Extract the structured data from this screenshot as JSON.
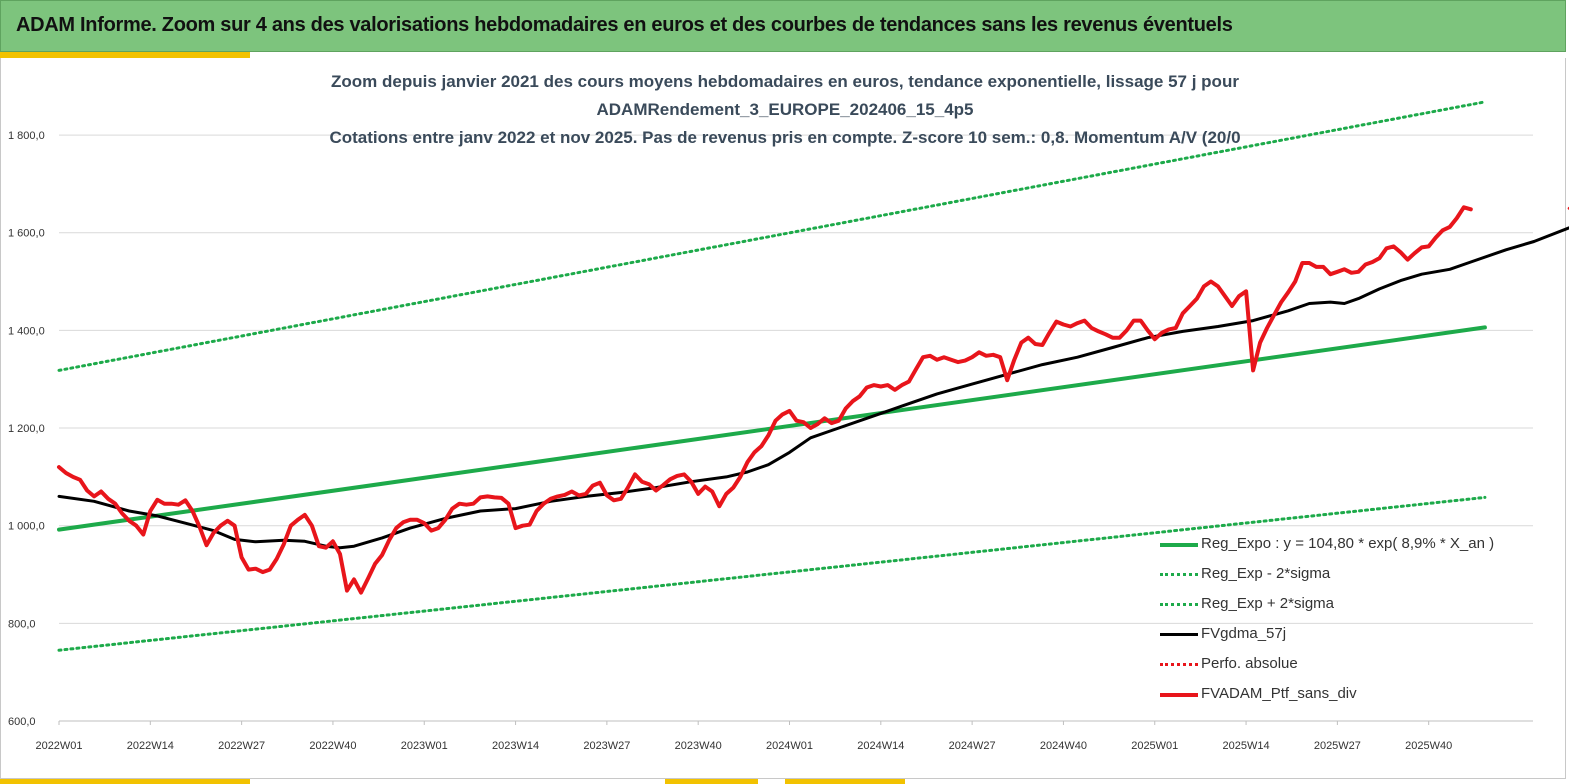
{
  "header": {
    "title": "ADAM Informe. Zoom sur 4 ans des valorisations hebdomadaires en euros et des courbes de tendances sans les revenus éventuels"
  },
  "colors": {
    "header_bg": "#7dc47d",
    "accent": "#f2c200",
    "trend_green": "#1daa4a",
    "black": "#000000",
    "red": "#e8151b"
  },
  "chart_data": {
    "type": "line",
    "title_lines": [
      "Zoom depuis janvier 2021 des cours moyens hebdomadaires  en euros, tendance exponentielle, lissage 57 j pour",
      "ADAMRendement_3_EUROPE_202406_15_4p5",
      "Cotations  entre janv 2022 et nov 2025. Pas de revenus pris en compte. Z-score 10 sem.: 0,8. Momentum A/V (20/0"
    ],
    "x_ticks": [
      "2022W01",
      "2022W14",
      "2022W27",
      "2022W40",
      "2023W01",
      "2023W14",
      "2023W27",
      "2023W40",
      "2024W01",
      "2024W14",
      "2024W27",
      "2024W40",
      "2025W01",
      "2025W14",
      "2025W27",
      "2025W40"
    ],
    "y_ticks": [
      "600,0",
      "800,0",
      "1 000,0",
      "1 200,0",
      "1 400,0",
      "1 600,0",
      "1 800,0"
    ],
    "ylim": [
      600,
      1880
    ],
    "x_range_weeks": [
      0,
      203
    ],
    "grid": "horizontal",
    "legend_position": "bottom-right",
    "series": [
      {
        "name": "Reg_Expo : y = 104,80 * exp( 8,9% *  X_an )",
        "style": "solid-thick",
        "color": "#1daa4a",
        "points": [
          [
            0,
            992
          ],
          [
            203,
            1406
          ]
        ]
      },
      {
        "name": "Reg_Exp - 2*sigma",
        "style": "dotted",
        "color": "#1daa4a",
        "points": [
          [
            0,
            745
          ],
          [
            203,
            1058
          ]
        ]
      },
      {
        "name": "Reg_Exp + 2*sigma",
        "style": "dotted",
        "color": "#1daa4a",
        "points": [
          [
            0,
            1318
          ],
          [
            203,
            1868
          ]
        ]
      },
      {
        "name": "FVgdma_57j",
        "style": "solid",
        "color": "#000000",
        "points": [
          [
            0,
            1060
          ],
          [
            5,
            1050
          ],
          [
            10,
            1030
          ],
          [
            14,
            1020
          ],
          [
            18,
            1005
          ],
          [
            22,
            990
          ],
          [
            25,
            972
          ],
          [
            28,
            967
          ],
          [
            32,
            970
          ],
          [
            35,
            968
          ],
          [
            38,
            958
          ],
          [
            40,
            955
          ],
          [
            42,
            958
          ],
          [
            46,
            975
          ],
          [
            50,
            995
          ],
          [
            55,
            1015
          ],
          [
            60,
            1030
          ],
          [
            65,
            1035
          ],
          [
            70,
            1050
          ],
          [
            75,
            1060
          ],
          [
            80,
            1068
          ],
          [
            85,
            1078
          ],
          [
            90,
            1090
          ],
          [
            95,
            1100
          ],
          [
            98,
            1110
          ],
          [
            101,
            1125
          ],
          [
            104,
            1150
          ],
          [
            107,
            1180
          ],
          [
            110,
            1195
          ],
          [
            115,
            1220
          ],
          [
            120,
            1245
          ],
          [
            125,
            1270
          ],
          [
            130,
            1290
          ],
          [
            135,
            1310
          ],
          [
            140,
            1330
          ],
          [
            145,
            1345
          ],
          [
            150,
            1365
          ],
          [
            155,
            1385
          ],
          [
            160,
            1398
          ],
          [
            165,
            1408
          ],
          [
            170,
            1420
          ],
          [
            175,
            1440
          ],
          [
            178,
            1455
          ],
          [
            181,
            1458
          ],
          [
            183,
            1455
          ],
          [
            185,
            1465
          ],
          [
            188,
            1485
          ],
          [
            191,
            1502
          ],
          [
            194,
            1515
          ],
          [
            198,
            1525
          ],
          [
            201,
            1540
          ],
          [
            206,
            1565
          ],
          [
            210,
            1582
          ],
          [
            215,
            1610
          ],
          [
            218,
            1620
          ],
          [
            220,
            1625
          ]
        ]
      },
      {
        "name": "Perfo. absolue",
        "style": "dotted",
        "color": "#e8151b",
        "points": [
          [
            215,
            1650
          ],
          [
            216,
            1640
          ],
          [
            217,
            1655
          ],
          [
            218,
            1635
          ],
          [
            219,
            1642
          ],
          [
            220,
            1638
          ]
        ]
      },
      {
        "name": "FVADAM_Ptf_sans_div",
        "style": "solid-thick",
        "color": "#e8151b",
        "points": [
          [
            0,
            1120
          ],
          [
            1,
            1108
          ],
          [
            2,
            1100
          ],
          [
            3,
            1094
          ],
          [
            4,
            1072
          ],
          [
            5,
            1060
          ],
          [
            6,
            1070
          ],
          [
            7,
            1055
          ],
          [
            8,
            1045
          ],
          [
            9,
            1025
          ],
          [
            10,
            1010
          ],
          [
            11,
            1000
          ],
          [
            12,
            982
          ],
          [
            13,
            1030
          ],
          [
            14,
            1053
          ],
          [
            15,
            1045
          ],
          [
            16,
            1045
          ],
          [
            17,
            1043
          ],
          [
            18,
            1052
          ],
          [
            19,
            1030
          ],
          [
            20,
            998
          ],
          [
            21,
            960
          ],
          [
            22,
            985
          ],
          [
            23,
            1000
          ],
          [
            24,
            1010
          ],
          [
            25,
            1000
          ],
          [
            26,
            935
          ],
          [
            27,
            910
          ],
          [
            28,
            912
          ],
          [
            29,
            905
          ],
          [
            30,
            910
          ],
          [
            31,
            932
          ],
          [
            32,
            962
          ],
          [
            33,
            1000
          ],
          [
            34,
            1012
          ],
          [
            35,
            1022
          ],
          [
            36,
            1000
          ],
          [
            37,
            958
          ],
          [
            38,
            955
          ],
          [
            39,
            968
          ],
          [
            40,
            942
          ],
          [
            41,
            867
          ],
          [
            42,
            890
          ],
          [
            43,
            863
          ],
          [
            44,
            892
          ],
          [
            45,
            922
          ],
          [
            46,
            940
          ],
          [
            47,
            970
          ],
          [
            48,
            995
          ],
          [
            49,
            1007
          ],
          [
            50,
            1012
          ],
          [
            51,
            1012
          ],
          [
            52,
            1005
          ],
          [
            53,
            990
          ],
          [
            54,
            995
          ],
          [
            55,
            1012
          ],
          [
            56,
            1035
          ],
          [
            57,
            1045
          ],
          [
            58,
            1043
          ],
          [
            59,
            1045
          ],
          [
            60,
            1058
          ],
          [
            61,
            1060
          ],
          [
            62,
            1058
          ],
          [
            63,
            1057
          ],
          [
            64,
            1045
          ],
          [
            65,
            995
          ],
          [
            66,
            1000
          ],
          [
            67,
            1002
          ],
          [
            68,
            1030
          ],
          [
            69,
            1045
          ],
          [
            70,
            1055
          ],
          [
            71,
            1060
          ],
          [
            72,
            1063
          ],
          [
            73,
            1070
          ],
          [
            74,
            1062
          ],
          [
            75,
            1065
          ],
          [
            76,
            1082
          ],
          [
            77,
            1088
          ],
          [
            78,
            1062
          ],
          [
            79,
            1052
          ],
          [
            80,
            1055
          ],
          [
            81,
            1078
          ],
          [
            82,
            1105
          ],
          [
            83,
            1090
          ],
          [
            84,
            1085
          ],
          [
            85,
            1072
          ],
          [
            86,
            1083
          ],
          [
            87,
            1095
          ],
          [
            88,
            1102
          ],
          [
            89,
            1105
          ],
          [
            90,
            1090
          ],
          [
            91,
            1065
          ],
          [
            92,
            1080
          ],
          [
            93,
            1070
          ],
          [
            94,
            1040
          ],
          [
            95,
            1065
          ],
          [
            96,
            1078
          ],
          [
            97,
            1100
          ],
          [
            98,
            1130
          ],
          [
            99,
            1150
          ],
          [
            100,
            1163
          ],
          [
            101,
            1185
          ],
          [
            102,
            1215
          ],
          [
            103,
            1228
          ],
          [
            104,
            1235
          ],
          [
            105,
            1215
          ],
          [
            106,
            1212
          ],
          [
            107,
            1200
          ],
          [
            108,
            1208
          ],
          [
            109,
            1220
          ],
          [
            110,
            1210
          ],
          [
            111,
            1215
          ],
          [
            112,
            1240
          ],
          [
            113,
            1255
          ],
          [
            114,
            1265
          ],
          [
            115,
            1283
          ],
          [
            116,
            1288
          ],
          [
            117,
            1285
          ],
          [
            118,
            1288
          ],
          [
            119,
            1278
          ],
          [
            120,
            1288
          ],
          [
            121,
            1295
          ],
          [
            122,
            1320
          ],
          [
            123,
            1345
          ],
          [
            124,
            1348
          ],
          [
            125,
            1340
          ],
          [
            126,
            1345
          ],
          [
            127,
            1340
          ],
          [
            128,
            1335
          ],
          [
            129,
            1338
          ],
          [
            130,
            1345
          ],
          [
            131,
            1355
          ],
          [
            132,
            1348
          ],
          [
            133,
            1350
          ],
          [
            134,
            1345
          ],
          [
            135,
            1298
          ],
          [
            136,
            1340
          ],
          [
            137,
            1375
          ],
          [
            138,
            1385
          ],
          [
            139,
            1372
          ],
          [
            140,
            1370
          ],
          [
            141,
            1395
          ],
          [
            142,
            1418
          ],
          [
            143,
            1412
          ],
          [
            144,
            1408
          ],
          [
            145,
            1415
          ],
          [
            146,
            1420
          ],
          [
            147,
            1405
          ],
          [
            148,
            1398
          ],
          [
            149,
            1392
          ],
          [
            150,
            1385
          ],
          [
            151,
            1385
          ],
          [
            152,
            1400
          ],
          [
            153,
            1420
          ],
          [
            154,
            1420
          ],
          [
            155,
            1400
          ],
          [
            156,
            1382
          ],
          [
            157,
            1395
          ],
          [
            158,
            1402
          ],
          [
            159,
            1405
          ],
          [
            160,
            1435
          ],
          [
            161,
            1450
          ],
          [
            162,
            1465
          ],
          [
            163,
            1490
          ],
          [
            164,
            1500
          ],
          [
            165,
            1490
          ],
          [
            166,
            1470
          ],
          [
            167,
            1450
          ],
          [
            168,
            1470
          ],
          [
            169,
            1480
          ],
          [
            170,
            1318
          ],
          [
            171,
            1375
          ],
          [
            172,
            1405
          ],
          [
            173,
            1432
          ],
          [
            174,
            1458
          ],
          [
            175,
            1478
          ],
          [
            176,
            1500
          ],
          [
            177,
            1538
          ],
          [
            178,
            1538
          ],
          [
            179,
            1530
          ],
          [
            180,
            1530
          ],
          [
            181,
            1515
          ],
          [
            182,
            1520
          ],
          [
            183,
            1525
          ],
          [
            184,
            1518
          ],
          [
            185,
            1520
          ],
          [
            186,
            1535
          ],
          [
            187,
            1540
          ],
          [
            188,
            1548
          ],
          [
            189,
            1568
          ],
          [
            190,
            1572
          ],
          [
            191,
            1560
          ],
          [
            192,
            1545
          ],
          [
            193,
            1558
          ],
          [
            194,
            1570
          ],
          [
            195,
            1572
          ],
          [
            196,
            1590
          ],
          [
            197,
            1605
          ],
          [
            198,
            1612
          ],
          [
            199,
            1630
          ],
          [
            200,
            1652
          ],
          [
            201,
            1648
          ]
        ]
      }
    ]
  }
}
